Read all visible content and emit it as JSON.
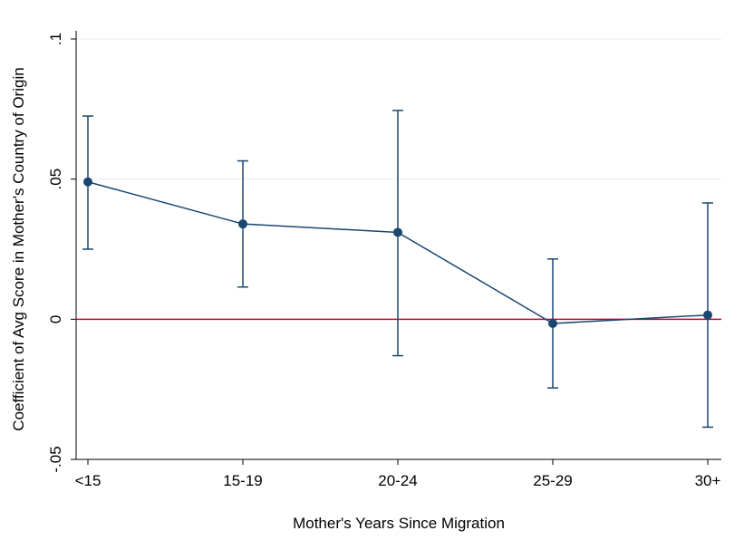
{
  "chart_data": {
    "type": "line",
    "title": "",
    "xlabel": "Mother's Years Since Migration",
    "ylabel": "Coefficient of Avg Score in Mother's Country of Origin",
    "categories": [
      "<15",
      "15-19",
      "20-24",
      "25-29",
      "30+"
    ],
    "series": [
      {
        "values": [
          0.049,
          0.034,
          0.031,
          -0.0015,
          0.0015
        ],
        "ci_lower": [
          0.025,
          0.0115,
          -0.013,
          -0.0245,
          -0.0385
        ],
        "ci_upper": [
          0.0725,
          0.0565,
          0.0745,
          0.0215,
          0.0415
        ]
      }
    ],
    "reference_line": {
      "y": 0
    },
    "ylim": [
      -0.05,
      0.1
    ],
    "yticks": [
      -0.05,
      0,
      0.05,
      0.1
    ],
    "ytick_labels": [
      "-.05",
      "0",
      ".05",
      ".1"
    ],
    "grid": true,
    "colors": {
      "series": "#1a476f",
      "reference": "#c10534",
      "grid": "#e6ebee"
    }
  }
}
